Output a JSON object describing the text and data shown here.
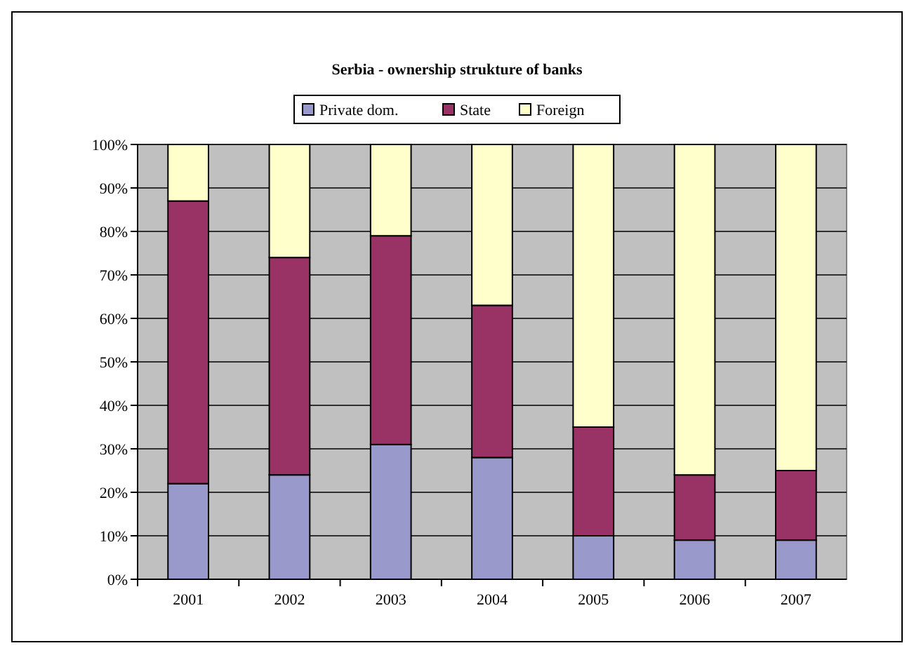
{
  "chart_data": {
    "type": "bar",
    "title": "Serbia - ownership strukture of banks",
    "categories": [
      "2001",
      "2002",
      "2003",
      "2004",
      "2005",
      "2006",
      "2007"
    ],
    "stacked": true,
    "series": [
      {
        "name": "Private dom.",
        "color": "#9999cc",
        "values": [
          22,
          24,
          31,
          28,
          10,
          9,
          9
        ]
      },
      {
        "name": "State",
        "color": "#993366",
        "values": [
          65,
          50,
          48,
          35,
          25,
          15,
          16
        ]
      },
      {
        "name": "Foreign",
        "color": "#ffffcc",
        "values": [
          13,
          26,
          21,
          37,
          65,
          76,
          75
        ]
      }
    ],
    "ylim": [
      0,
      100
    ],
    "yticks": [
      {
        "value": 0,
        "label": "0%"
      },
      {
        "value": 10,
        "label": "10%"
      },
      {
        "value": 20,
        "label": "20%"
      },
      {
        "value": 30,
        "label": "30%"
      },
      {
        "value": 40,
        "label": "40%"
      },
      {
        "value": 50,
        "label": "50%"
      },
      {
        "value": 60,
        "label": "60%"
      },
      {
        "value": 70,
        "label": "70%"
      },
      {
        "value": 80,
        "label": "80%"
      },
      {
        "value": 90,
        "label": "90%"
      },
      {
        "value": 100,
        "label": "100%"
      }
    ],
    "grid": "y",
    "legend": "top"
  }
}
